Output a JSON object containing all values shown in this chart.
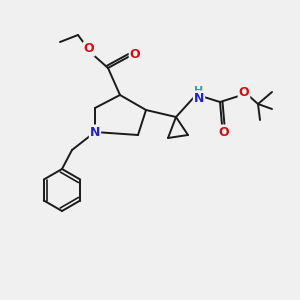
{
  "bg_color": "#f0f0f0",
  "atom_colors": {
    "C": "#1a1a1a",
    "N": "#2222cc",
    "O": "#cc1111",
    "H": "#4a9999"
  },
  "bond_lw": 1.4,
  "figsize": [
    3.0,
    3.0
  ],
  "dpi": 100
}
